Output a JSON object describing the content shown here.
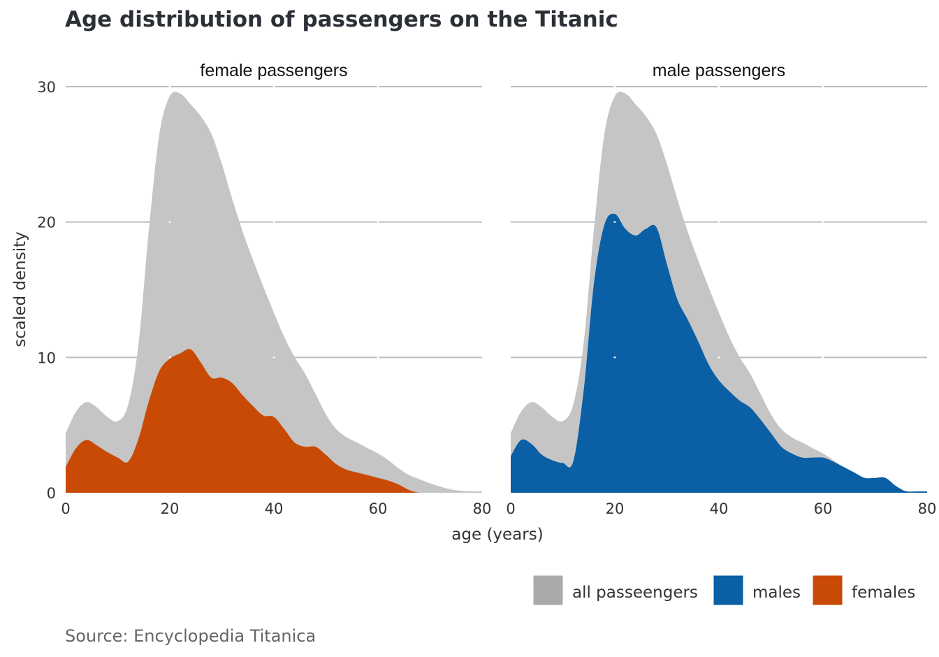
{
  "chart_data": {
    "type": "area",
    "title": "Age distribution of passengers on the Titanic",
    "xlabel": "age (years)",
    "ylabel": "scaled density",
    "xlim": [
      0,
      80
    ],
    "ylim": [
      0,
      30
    ],
    "x_ticks": [
      "0",
      "20",
      "40",
      "60",
      "80"
    ],
    "y_ticks": [
      "0",
      "10",
      "20",
      "30"
    ],
    "grid": true,
    "legend_position": "bottom-right",
    "caption": "Source: Encyclopedia Titanica",
    "x": [
      0,
      2,
      4,
      6,
      8,
      10,
      12,
      14,
      16,
      18,
      20,
      22,
      24,
      26,
      28,
      30,
      32,
      34,
      36,
      38,
      40,
      42,
      44,
      46,
      48,
      50,
      52,
      54,
      56,
      58,
      60,
      62,
      64,
      66,
      68,
      70,
      72,
      74,
      76,
      78,
      80
    ],
    "all_passengers": [
      4.4,
      6.0,
      6.7,
      6.3,
      5.6,
      5.3,
      6.5,
      11.0,
      19.5,
      26.5,
      29.3,
      29.5,
      28.7,
      27.8,
      26.5,
      24.3,
      21.7,
      19.3,
      17.2,
      15.2,
      13.3,
      11.5,
      10.0,
      8.8,
      7.3,
      5.8,
      4.7,
      4.1,
      3.7,
      3.3,
      2.9,
      2.4,
      1.8,
      1.3,
      1.0,
      0.7,
      0.45,
      0.25,
      0.15,
      0.1,
      0.1
    ],
    "panels": [
      {
        "strip": "female passengers",
        "series_key": "females",
        "values": [
          1.9,
          3.3,
          3.9,
          3.5,
          3.0,
          2.6,
          2.3,
          4.0,
          6.8,
          9.0,
          9.9,
          10.3,
          10.6,
          9.6,
          8.5,
          8.5,
          8.1,
          7.2,
          6.4,
          5.7,
          5.6,
          4.7,
          3.7,
          3.4,
          3.4,
          2.8,
          2.1,
          1.7,
          1.5,
          1.3,
          1.1,
          0.9,
          0.6,
          0.2,
          0.0,
          0.0,
          0.0,
          0.0,
          0.0,
          0.0,
          0.0
        ]
      },
      {
        "strip": "male passengers",
        "series_key": "males",
        "values": [
          2.7,
          3.9,
          3.6,
          2.8,
          2.4,
          2.2,
          2.3,
          7.5,
          15.5,
          19.8,
          20.6,
          19.5,
          19.0,
          19.5,
          19.6,
          16.9,
          14.3,
          12.8,
          11.2,
          9.5,
          8.3,
          7.5,
          6.8,
          6.3,
          5.4,
          4.4,
          3.4,
          2.9,
          2.6,
          2.6,
          2.6,
          2.3,
          1.9,
          1.5,
          1.1,
          1.1,
          1.1,
          0.5,
          0.1,
          0.1,
          0.1
        ]
      }
    ],
    "legend": [
      {
        "key": "all",
        "label": "all passeengers"
      },
      {
        "key": "males",
        "label": "males"
      },
      {
        "key": "females",
        "label": "females"
      }
    ],
    "colors": {
      "all_passengers": "#c5c5c5",
      "legend_all": "#aaaaaa",
      "males": "#0b5fa5",
      "females": "#c94a05",
      "grid": "#bdbdbd"
    }
  }
}
